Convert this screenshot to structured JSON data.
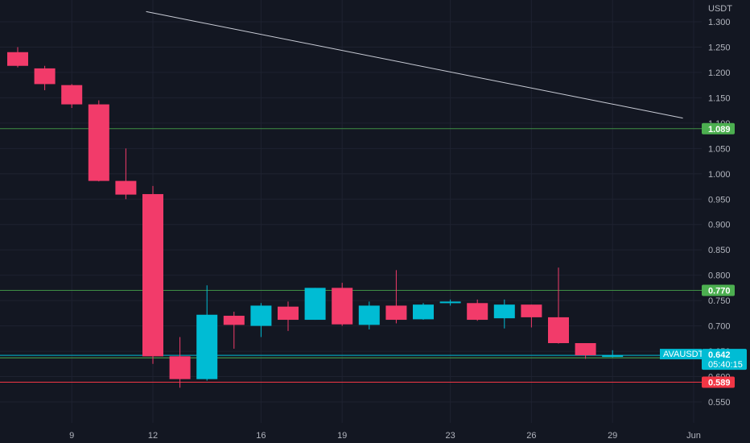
{
  "chart_data": {
    "type": "candlestick",
    "symbol": "AVAUSDT",
    "currency_label": "USDT",
    "y_axis": {
      "ylim": [
        0.535,
        1.315
      ],
      "ticks": [
        "0.550",
        "0.600",
        "0.650",
        "0.700",
        "0.750",
        "0.800",
        "0.850",
        "0.900",
        "0.950",
        "1.000",
        "1.050",
        "1.100",
        "1.150",
        "1.200",
        "1.250",
        "1.300"
      ]
    },
    "x_axis": {
      "ticks": [
        {
          "label": "9",
          "index": 2
        },
        {
          "label": "12",
          "index": 5
        },
        {
          "label": "16",
          "index": 9
        },
        {
          "label": "19",
          "index": 12
        },
        {
          "label": "23",
          "index": 16
        },
        {
          "label": "26",
          "index": 19
        },
        {
          "label": "29",
          "index": 22
        },
        {
          "label": "Jun",
          "index": 25
        }
      ]
    },
    "candles": [
      {
        "o": 1.24,
        "h": 1.25,
        "l": 1.21,
        "c": 1.213
      },
      {
        "o": 1.208,
        "h": 1.213,
        "l": 1.165,
        "c": 1.177
      },
      {
        "o": 1.175,
        "h": 1.177,
        "l": 1.13,
        "c": 1.137
      },
      {
        "o": 1.137,
        "h": 1.145,
        "l": 0.985,
        "c": 0.986
      },
      {
        "o": 0.986,
        "h": 1.05,
        "l": 0.95,
        "c": 0.959
      },
      {
        "o": 0.96,
        "h": 0.976,
        "l": 0.625,
        "c": 0.64
      },
      {
        "o": 0.64,
        "h": 0.678,
        "l": 0.578,
        "c": 0.595
      },
      {
        "o": 0.595,
        "h": 0.78,
        "l": 0.592,
        "c": 0.722
      },
      {
        "o": 0.72,
        "h": 0.728,
        "l": 0.655,
        "c": 0.702
      },
      {
        "o": 0.7,
        "h": 0.745,
        "l": 0.678,
        "c": 0.74
      },
      {
        "o": 0.738,
        "h": 0.748,
        "l": 0.69,
        "c": 0.712
      },
      {
        "o": 0.712,
        "h": 0.775,
        "l": 0.712,
        "c": 0.775
      },
      {
        "o": 0.775,
        "h": 0.785,
        "l": 0.7,
        "c": 0.703
      },
      {
        "o": 0.702,
        "h": 0.748,
        "l": 0.693,
        "c": 0.74
      },
      {
        "o": 0.74,
        "h": 0.81,
        "l": 0.705,
        "c": 0.712
      },
      {
        "o": 0.713,
        "h": 0.745,
        "l": 0.712,
        "c": 0.742
      },
      {
        "o": 0.745,
        "h": 0.752,
        "l": 0.74,
        "c": 0.748
      },
      {
        "o": 0.745,
        "h": 0.752,
        "l": 0.71,
        "c": 0.712
      },
      {
        "o": 0.715,
        "h": 0.752,
        "l": 0.695,
        "c": 0.742
      },
      {
        "o": 0.742,
        "h": 0.742,
        "l": 0.697,
        "c": 0.717
      },
      {
        "o": 0.717,
        "h": 0.815,
        "l": 0.665,
        "c": 0.666
      },
      {
        "o": 0.666,
        "h": 0.666,
        "l": 0.635,
        "c": 0.642
      },
      {
        "o": 0.64,
        "h": 0.652,
        "l": 0.638,
        "c": 0.642
      }
    ],
    "horizontal_lines": [
      {
        "price": 1.089,
        "label": "1.089",
        "color": "#4caf50",
        "line_color": "#3f8f45"
      },
      {
        "price": 0.77,
        "label": "0.770",
        "color": "#4caf50",
        "line_color": "#3f8f45"
      },
      {
        "price": 0.637,
        "label": "0.637",
        "color": "#f5f178",
        "line_color": "#4caf50"
      },
      {
        "price": 0.589,
        "label": "0.589",
        "color": "#f23645",
        "line_color": "#f23645"
      }
    ],
    "trend_line": {
      "from": {
        "index": 4.75,
        "price": 1.32
      },
      "to": {
        "index": 24.6,
        "price": 1.11
      },
      "color": "#c9ccd6"
    },
    "last_price": {
      "value": "0.642",
      "countdown": "05:40:15",
      "price": 0.642,
      "color": "#00bcd4"
    },
    "colors": {
      "background": "#131722",
      "grid": "#1e2230",
      "up": "#00bcd4",
      "down": "#f23b6a",
      "axis_text": "#b2b5be"
    }
  }
}
